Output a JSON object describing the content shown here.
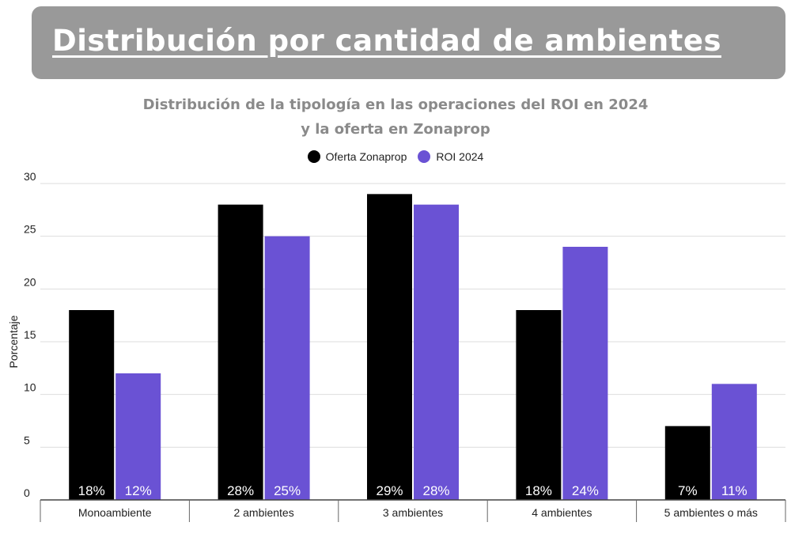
{
  "banner": {
    "title": "Distribución por cantidad de ambientes"
  },
  "colors": {
    "banner_bg": "#999999",
    "oferta": "#000000",
    "roi": "#6a52d4",
    "title_text": "#8a8a8a"
  },
  "chart_data": {
    "type": "bar",
    "title_line1": "Distribución de la tipología en las operaciones del ROI en 2024",
    "title_line2": "y la oferta en Zonaprop",
    "xlabel": "",
    "ylabel": "Porcentaje",
    "ylim": [
      0,
      30
    ],
    "yticks": [
      0,
      5,
      10,
      15,
      20,
      25,
      30
    ],
    "grid": true,
    "legend_position": "top-center",
    "categories": [
      "Monoambiente",
      "2 ambientes",
      "3 ambientes",
      "4 ambientes",
      "5 ambientes o más"
    ],
    "series": [
      {
        "name": "Oferta Zonaprop",
        "color": "#000000",
        "values": [
          18,
          28,
          29,
          18,
          7
        ],
        "labels": [
          "18%",
          "28%",
          "29%",
          "18%",
          "7%"
        ]
      },
      {
        "name": "ROI 2024",
        "color": "#6a52d4",
        "values": [
          12,
          25,
          28,
          24,
          11
        ],
        "labels": [
          "12%",
          "25%",
          "28%",
          "24%",
          "11%"
        ]
      }
    ]
  }
}
